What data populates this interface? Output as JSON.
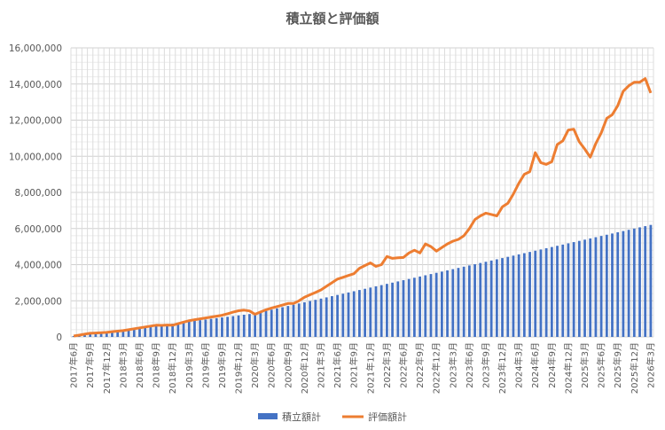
{
  "chart_data": {
    "type": "bar+line",
    "title": "積立額と評価額",
    "x_start": "2017-06",
    "x_end": "2026-03",
    "x_tick_labels": [
      "2017年6月",
      "2017年9月",
      "2017年12月",
      "2018年3月",
      "2018年6月",
      "2018年9月",
      "2018年12月",
      "2019年3月",
      "2019年6月",
      "2019年9月",
      "2019年12月",
      "2020年3月",
      "2020年6月",
      "2020年9月",
      "2020年12月",
      "2021年3月",
      "2021年6月",
      "2021年9月",
      "2021年12月",
      "2022年3月",
      "2022年6月",
      "2022年9月",
      "2022年12月",
      "2023年3月",
      "2023年6月",
      "2023年9月",
      "2023年12月",
      "2024年3月",
      "2024年6月",
      "2024年9月",
      "2024年12月",
      "2025年3月",
      "2025年6月",
      "2025年9月",
      "2025年12月",
      "2026年3月"
    ],
    "y_tick_labels": [
      "0",
      "2,000,000",
      "4,000,000",
      "6,000,000",
      "8,000,000",
      "10,000,000",
      "12,000,000",
      "14,000,000",
      "16,000,000"
    ],
    "ylim": [
      0,
      16000000
    ],
    "grid": true,
    "legend_position": "bottom",
    "value_scale": 1000,
    "series": [
      {
        "name": "積立額計",
        "type": "bar",
        "color": "#4472C4",
        "values": [
          50,
          88,
          126,
          164,
          202,
          240,
          278,
          316,
          354,
          392,
          430,
          468,
          506,
          544,
          582,
          620,
          658,
          696,
          734,
          772,
          810,
          848,
          886,
          924,
          962,
          1000,
          1038,
          1076,
          1114,
          1152,
          1190,
          1228,
          1266,
          1304,
          1372,
          1440,
          1508,
          1576,
          1644,
          1712,
          1780,
          1848,
          1916,
          1984,
          2052,
          2120,
          2188,
          2256,
          2324,
          2392,
          2460,
          2528,
          2596,
          2664,
          2732,
          2800,
          2868,
          2936,
          3004,
          3072,
          3140,
          3208,
          3276,
          3344,
          3412,
          3480,
          3548,
          3616,
          3684,
          3752,
          3820,
          3888,
          3956,
          4024,
          4092,
          4160,
          4228,
          4296,
          4364,
          4432,
          4500,
          4568,
          4636,
          4704,
          4772,
          4840,
          4908,
          4976,
          5044,
          5112,
          5180,
          5248,
          5316,
          5384,
          5452,
          5520,
          5588,
          5656,
          5724,
          5792,
          5860,
          5928,
          5996,
          6064,
          6132,
          6200
        ]
      },
      {
        "name": "評価額計",
        "type": "line",
        "color": "#ED7D31",
        "values": [
          50,
          100,
          150,
          200,
          215,
          230,
          250,
          290,
          320,
          350,
          400,
          450,
          500,
          550,
          600,
          650,
          640,
          660,
          650,
          730,
          820,
          900,
          950,
          1000,
          1050,
          1100,
          1150,
          1200,
          1280,
          1370,
          1450,
          1480,
          1440,
          1250,
          1380,
          1500,
          1600,
          1680,
          1760,
          1850,
          1850,
          2000,
          2200,
          2330,
          2460,
          2600,
          2800,
          3000,
          3200,
          3300,
          3400,
          3500,
          3800,
          3950,
          4100,
          3900,
          4000,
          4450,
          4350,
          4380,
          4400,
          4650,
          4800,
          4650,
          5150,
          5000,
          4750,
          4950,
          5150,
          5300,
          5400,
          5600,
          6000,
          6500,
          6700,
          6850,
          6780,
          6700,
          7200,
          7400,
          7900,
          8500,
          9000,
          9150,
          10200,
          9650,
          9550,
          9700,
          10650,
          10850,
          11450,
          11500,
          10800,
          10400,
          9950,
          10700,
          11300,
          12100,
          12300,
          12800,
          13600,
          13900,
          14100,
          14100,
          14300,
          13500
        ]
      }
    ]
  }
}
